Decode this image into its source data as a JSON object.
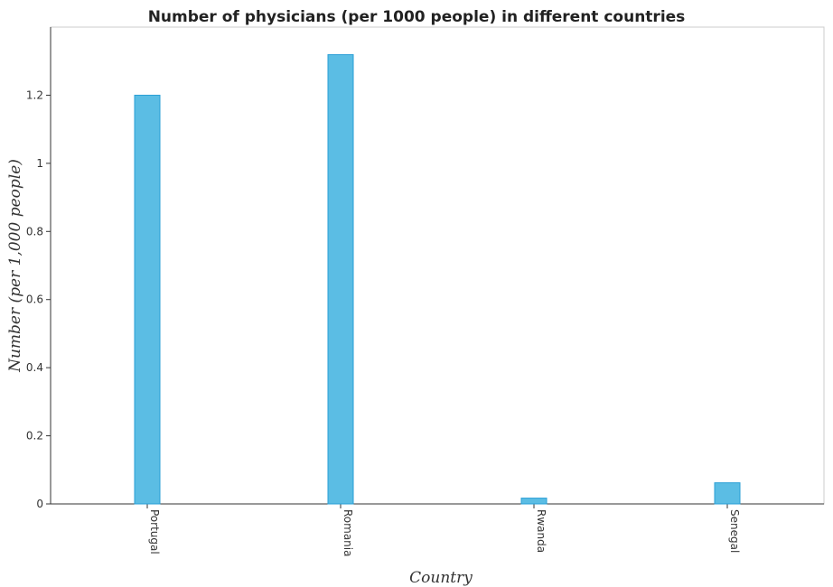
{
  "chart_data": {
    "type": "bar",
    "title": "Number of physicians (per 1000 people) in different countries",
    "xlabel": "Country",
    "ylabel": "Number (per 1,000 people)",
    "categories": [
      "Portugal",
      "Romania",
      "Rwanda",
      "Senegal"
    ],
    "values": [
      1.2,
      1.319,
      0.017,
      0.062
    ],
    "ylim": [
      0,
      1.4
    ],
    "yticks": [
      0,
      0.2,
      0.4,
      0.6,
      0.8,
      1,
      1.2
    ],
    "ytick_labels": [
      "0",
      "0.2",
      "0.4",
      "0.6",
      "0.8",
      "1",
      "1.2"
    ],
    "bar_color": "#5bbde4",
    "bar_edge_color": "#2a9fd6",
    "grid": false,
    "legend": "none"
  }
}
